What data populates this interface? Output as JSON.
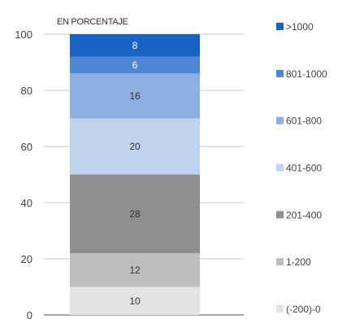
{
  "chart_data": {
    "type": "bar",
    "stacked": true,
    "unit_label": "EN PORCENTAJE",
    "ylim": [
      0,
      100
    ],
    "yticks": [
      0,
      20,
      40,
      60,
      80,
      100
    ],
    "grid": true,
    "legend_position": "right",
    "categories": [
      ""
    ],
    "series": [
      {
        "name": "(-200)-0",
        "values": [
          10
        ],
        "label": "10",
        "color": "#e3e3e3",
        "label_color": "#333333"
      },
      {
        "name": "1-200",
        "values": [
          12
        ],
        "label": "12",
        "color": "#bdbdbd",
        "label_color": "#333333"
      },
      {
        "name": "201-400",
        "values": [
          28
        ],
        "label": "28",
        "color": "#8f8f8f",
        "label_color": "#333333"
      },
      {
        "name": "401-600",
        "values": [
          20
        ],
        "label": "20",
        "color": "#bed3ee",
        "label_color": "#333333"
      },
      {
        "name": "601-800",
        "values": [
          16
        ],
        "label": "16",
        "color": "#8dafe1",
        "label_color": "#333333"
      },
      {
        "name": "801-1000",
        "values": [
          6
        ],
        "label": "6",
        "color": "#4f86d2",
        "label_color": "#ffffff"
      },
      {
        "name": ">1000",
        "values": [
          8
        ],
        "label": "8",
        "color": "#1a62c4",
        "label_color": "#ffffff"
      }
    ]
  }
}
